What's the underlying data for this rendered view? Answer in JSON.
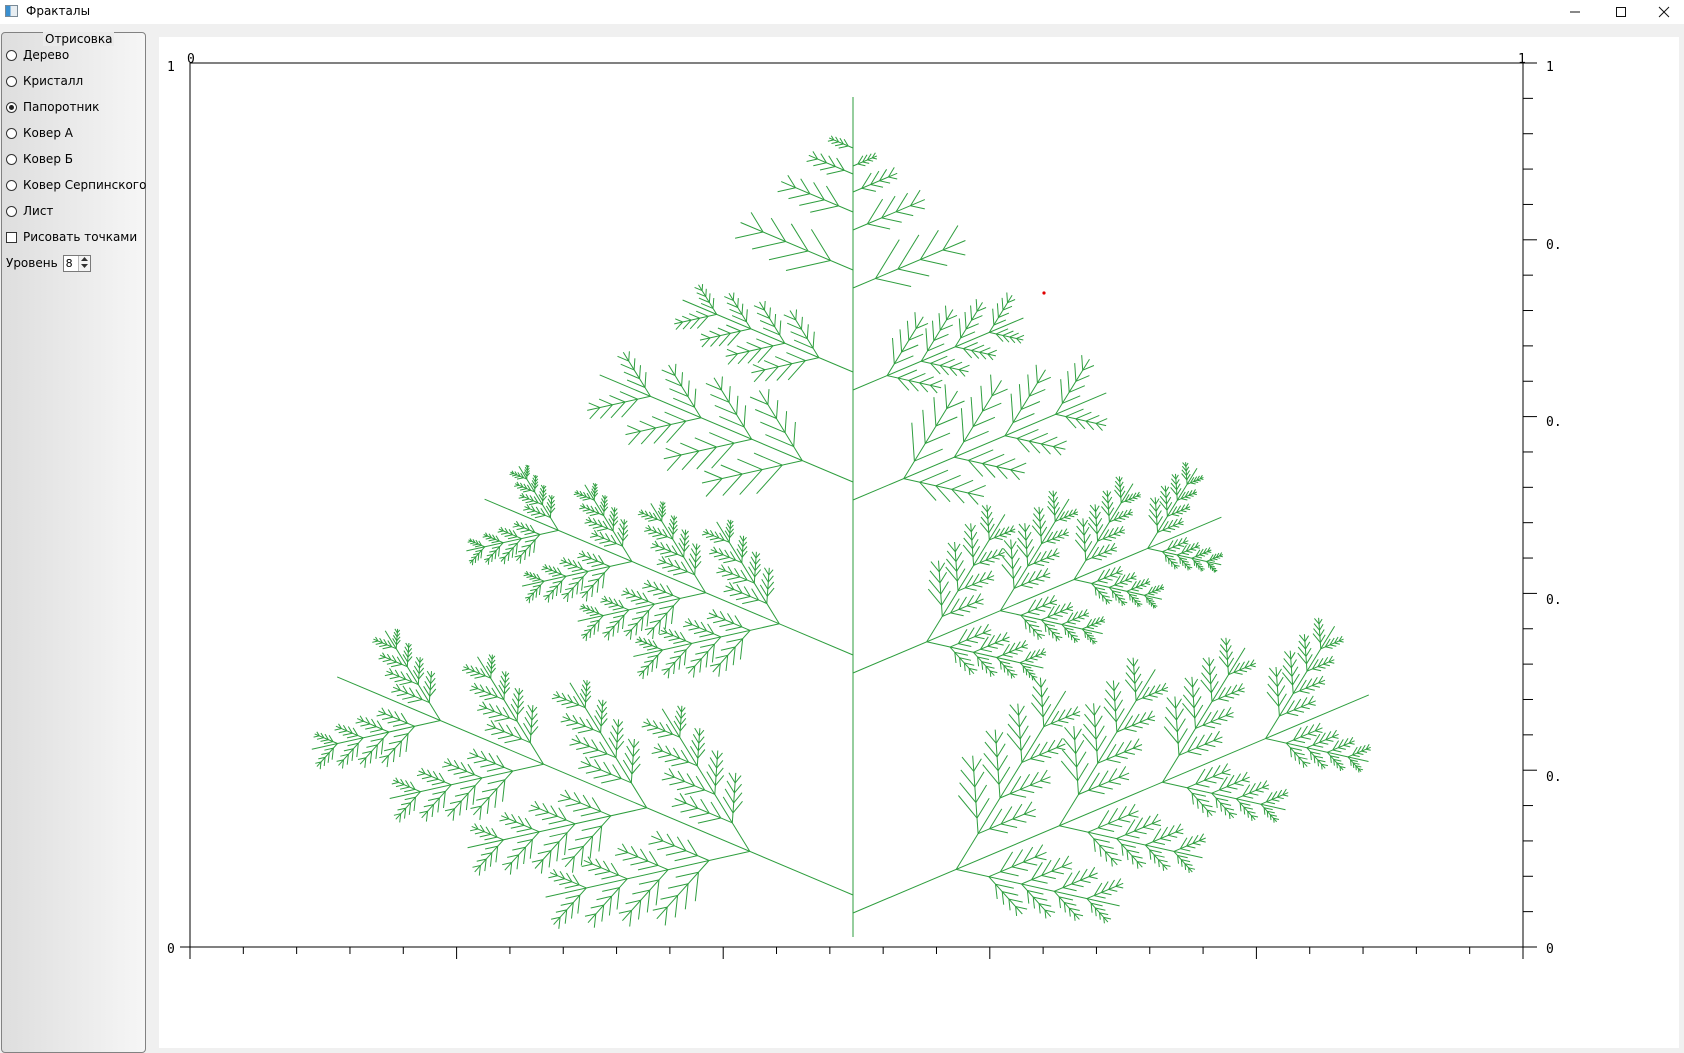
{
  "window": {
    "title": "Фракталы",
    "icon": "app-icon",
    "controls": [
      "minimize-icon",
      "maximize-icon",
      "close-icon"
    ]
  },
  "panel": {
    "group_title": "Отрисовка",
    "options": [
      {
        "label": "Дерево",
        "checked": false
      },
      {
        "label": "Кристалл",
        "checked": false
      },
      {
        "label": "Папоротник",
        "checked": true
      },
      {
        "label": "Ковер А",
        "checked": false
      },
      {
        "label": "Ковер Б",
        "checked": false
      },
      {
        "label": "Ковер Серпинского",
        "checked": false
      },
      {
        "label": "Лист",
        "checked": false
      }
    ],
    "draw_points": {
      "label": "Рисовать точками",
      "checked": false
    },
    "level": {
      "label": "Уровень",
      "value": "8"
    }
  },
  "plot": {
    "top_left_x": "0",
    "top_right_x": "1",
    "left_top_y": "1",
    "left_bottom_y": "0",
    "right_labels": [
      "1",
      "0.",
      "0.",
      "0.",
      "0.",
      "0"
    ],
    "fern_color": "#2e9e3e",
    "marker_color": "#e00000"
  }
}
